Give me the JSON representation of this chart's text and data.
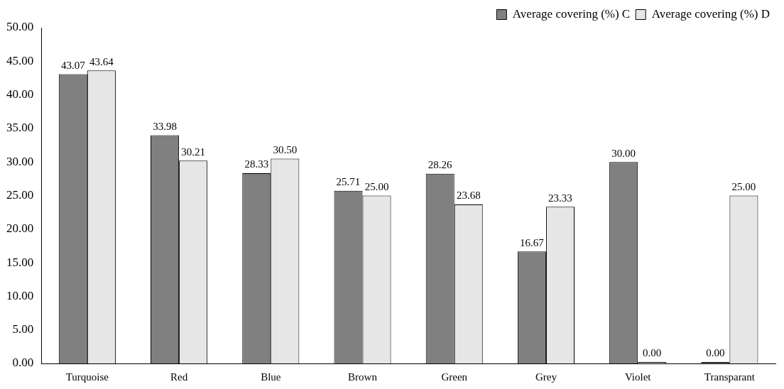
{
  "chart_data": {
    "type": "bar",
    "categories": [
      "Turquoise",
      "Red",
      "Blue",
      "Brown",
      "Green",
      "Grey",
      "Violet",
      "Transparant"
    ],
    "series": [
      {
        "name": "Average covering (%) C",
        "color": "#808080",
        "values": [
          43.07,
          33.98,
          28.33,
          25.71,
          28.26,
          16.67,
          30.0,
          0.0
        ],
        "value_labels": [
          "43.07",
          "33.98",
          "28.33",
          "25.71",
          "28.26",
          "16.67",
          "30.00",
          "0.00"
        ]
      },
      {
        "name": "Average covering (%) D",
        "color": "#e6e6e6",
        "values": [
          43.64,
          30.21,
          30.5,
          25.0,
          23.68,
          23.33,
          0.0,
          25.0
        ],
        "value_labels": [
          "43.64",
          "30.21",
          "30.50",
          "25.00",
          "23.68",
          "23.33",
          "0.00",
          "25.00"
        ]
      }
    ],
    "ylim": [
      0,
      50
    ],
    "yticks": [
      {
        "value": 0,
        "label": "0.00"
      },
      {
        "value": 5,
        "label": "5.00"
      },
      {
        "value": 10,
        "label": "10.00"
      },
      {
        "value": 15,
        "label": "15.00"
      },
      {
        "value": 20,
        "label": "20.00"
      },
      {
        "value": 25,
        "label": "25.00"
      },
      {
        "value": 30,
        "label": "30.00"
      },
      {
        "value": 35,
        "label": "35.00"
      },
      {
        "value": 40,
        "label": "40.00"
      },
      {
        "value": 45,
        "label": "45.00"
      },
      {
        "value": 50,
        "label": "50.00"
      }
    ],
    "grid": false,
    "legend": "top right"
  }
}
